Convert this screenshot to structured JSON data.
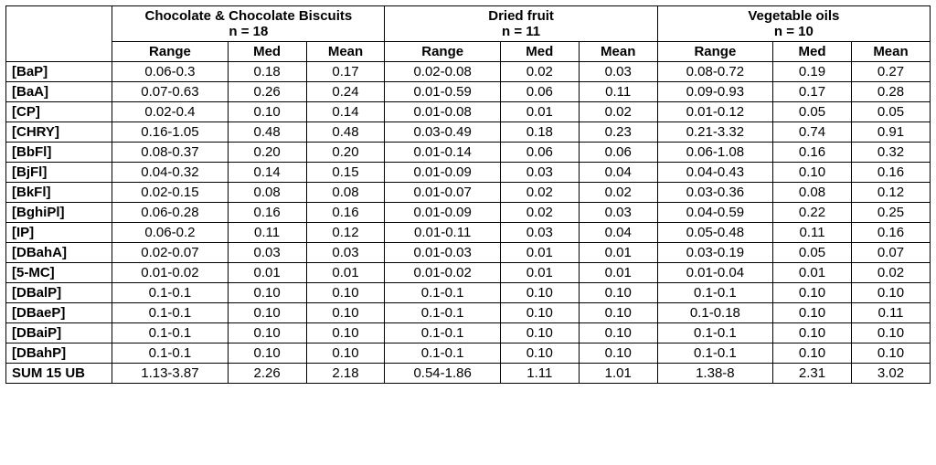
{
  "groups": [
    {
      "title": "Chocolate & Chocolate Biscuits",
      "n": "n = 18"
    },
    {
      "title": "Dried fruit",
      "n": "n = 11"
    },
    {
      "title": "Vegetable oils",
      "n": "n = 10"
    }
  ],
  "subheads": {
    "range": "Range",
    "med": "Med",
    "mean": "Mean"
  },
  "rows": [
    {
      "name": "[BaP]",
      "g": [
        {
          "range": "0.06-0.3",
          "med": "0.18",
          "mean": "0.17"
        },
        {
          "range": "0.02-0.08",
          "med": "0.02",
          "mean": "0.03"
        },
        {
          "range": "0.08-0.72",
          "med": "0.19",
          "mean": "0.27"
        }
      ]
    },
    {
      "name": "[BaA]",
      "g": [
        {
          "range": "0.07-0.63",
          "med": "0.26",
          "mean": "0.24"
        },
        {
          "range": "0.01-0.59",
          "med": "0.06",
          "mean": "0.11"
        },
        {
          "range": "0.09-0.93",
          "med": "0.17",
          "mean": "0.28"
        }
      ]
    },
    {
      "name": "[CP]",
      "g": [
        {
          "range": "0.02-0.4",
          "med": "0.10",
          "mean": "0.14"
        },
        {
          "range": "0.01-0.08",
          "med": "0.01",
          "mean": "0.02"
        },
        {
          "range": "0.01-0.12",
          "med": "0.05",
          "mean": "0.05"
        }
      ]
    },
    {
      "name": "[CHRY]",
      "g": [
        {
          "range": "0.16-1.05",
          "med": "0.48",
          "mean": "0.48"
        },
        {
          "range": "0.03-0.49",
          "med": "0.18",
          "mean": "0.23"
        },
        {
          "range": "0.21-3.32",
          "med": "0.74",
          "mean": "0.91"
        }
      ]
    },
    {
      "name": "[BbFl]",
      "g": [
        {
          "range": "0.08-0.37",
          "med": "0.20",
          "mean": "0.20"
        },
        {
          "range": "0.01-0.14",
          "med": "0.06",
          "mean": "0.06"
        },
        {
          "range": "0.06-1.08",
          "med": "0.16",
          "mean": "0.32"
        }
      ]
    },
    {
      "name": "[BjFl]",
      "g": [
        {
          "range": "0.04-0.32",
          "med": "0.14",
          "mean": "0.15"
        },
        {
          "range": "0.01-0.09",
          "med": "0.03",
          "mean": "0.04"
        },
        {
          "range": "0.04-0.43",
          "med": "0.10",
          "mean": "0.16"
        }
      ]
    },
    {
      "name": "[BkFl]",
      "g": [
        {
          "range": "0.02-0.15",
          "med": "0.08",
          "mean": "0.08"
        },
        {
          "range": "0.01-0.07",
          "med": "0.02",
          "mean": "0.02"
        },
        {
          "range": "0.03-0.36",
          "med": "0.08",
          "mean": "0.12"
        }
      ]
    },
    {
      "name": "[BghiPl]",
      "g": [
        {
          "range": "0.06-0.28",
          "med": "0.16",
          "mean": "0.16"
        },
        {
          "range": "0.01-0.09",
          "med": "0.02",
          "mean": "0.03"
        },
        {
          "range": "0.04-0.59",
          "med": "0.22",
          "mean": "0.25"
        }
      ]
    },
    {
      "name": "[IP]",
      "g": [
        {
          "range": "0.06-0.2",
          "med": "0.11",
          "mean": "0.12"
        },
        {
          "range": "0.01-0.11",
          "med": "0.03",
          "mean": "0.04"
        },
        {
          "range": "0.05-0.48",
          "med": "0.11",
          "mean": "0.16"
        }
      ]
    },
    {
      "name": "[DBahA]",
      "g": [
        {
          "range": "0.02-0.07",
          "med": "0.03",
          "mean": "0.03"
        },
        {
          "range": "0.01-0.03",
          "med": "0.01",
          "mean": "0.01"
        },
        {
          "range": "0.03-0.19",
          "med": "0.05",
          "mean": "0.07"
        }
      ]
    },
    {
      "name": "[5-MC]",
      "g": [
        {
          "range": "0.01-0.02",
          "med": "0.01",
          "mean": "0.01"
        },
        {
          "range": "0.01-0.02",
          "med": "0.01",
          "mean": "0.01"
        },
        {
          "range": "0.01-0.04",
          "med": "0.01",
          "mean": "0.02"
        }
      ]
    },
    {
      "name": "[DBalP]",
      "g": [
        {
          "range": "0.1-0.1",
          "med": "0.10",
          "mean": "0.10"
        },
        {
          "range": "0.1-0.1",
          "med": "0.10",
          "mean": "0.10"
        },
        {
          "range": "0.1-0.1",
          "med": "0.10",
          "mean": "0.10"
        }
      ]
    },
    {
      "name": "[DBaeP]",
      "g": [
        {
          "range": "0.1-0.1",
          "med": "0.10",
          "mean": "0.10"
        },
        {
          "range": "0.1-0.1",
          "med": "0.10",
          "mean": "0.10"
        },
        {
          "range": "0.1-0.18",
          "med": "0.10",
          "mean": "0.11"
        }
      ]
    },
    {
      "name": "[DBaiP]",
      "g": [
        {
          "range": "0.1-0.1",
          "med": "0.10",
          "mean": "0.10"
        },
        {
          "range": "0.1-0.1",
          "med": "0.10",
          "mean": "0.10"
        },
        {
          "range": "0.1-0.1",
          "med": "0.10",
          "mean": "0.10"
        }
      ]
    },
    {
      "name": "[DBahP]",
      "g": [
        {
          "range": "0.1-0.1",
          "med": "0.10",
          "mean": "0.10"
        },
        {
          "range": "0.1-0.1",
          "med": "0.10",
          "mean": "0.10"
        },
        {
          "range": "0.1-0.1",
          "med": "0.10",
          "mean": "0.10"
        }
      ]
    },
    {
      "name": "SUM 15 UB",
      "g": [
        {
          "range": "1.13-3.87",
          "med": "2.26",
          "mean": "2.18"
        },
        {
          "range": "0.54-1.86",
          "med": "1.11",
          "mean": "1.01"
        },
        {
          "range": "1.38-8",
          "med": "2.31",
          "mean": "3.02"
        }
      ]
    }
  ]
}
